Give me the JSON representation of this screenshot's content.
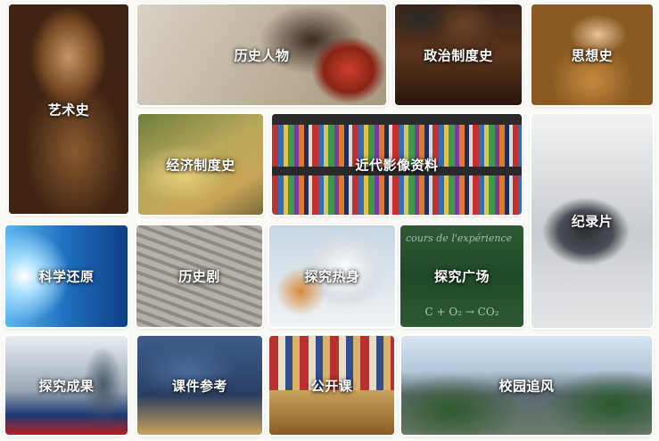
{
  "tiles": [
    {
      "id": "art",
      "label": "艺术史"
    },
    {
      "id": "history_figures",
      "label": "历史人物"
    },
    {
      "id": "political_system",
      "label": "政治制度史"
    },
    {
      "id": "thought",
      "label": "思想史"
    },
    {
      "id": "economic_system",
      "label": "经济制度史"
    },
    {
      "id": "modern_media",
      "label": "近代影像资料"
    },
    {
      "id": "documentary",
      "label": "纪录片"
    },
    {
      "id": "science_restore",
      "label": "科学还原"
    },
    {
      "id": "history_drama",
      "label": "历史剧"
    },
    {
      "id": "explore_hot",
      "label": "探究热身"
    },
    {
      "id": "explore_square",
      "label": "探究广场"
    },
    {
      "id": "explore_results",
      "label": "探究成果"
    },
    {
      "id": "courseware",
      "label": "课件参考"
    },
    {
      "id": "open_class",
      "label": "公开课"
    },
    {
      "id": "campus",
      "label": "校园追风"
    }
  ],
  "chalkboard": {
    "top": "cours de l'expérience",
    "formula": "C + O₂ → CO₂"
  }
}
